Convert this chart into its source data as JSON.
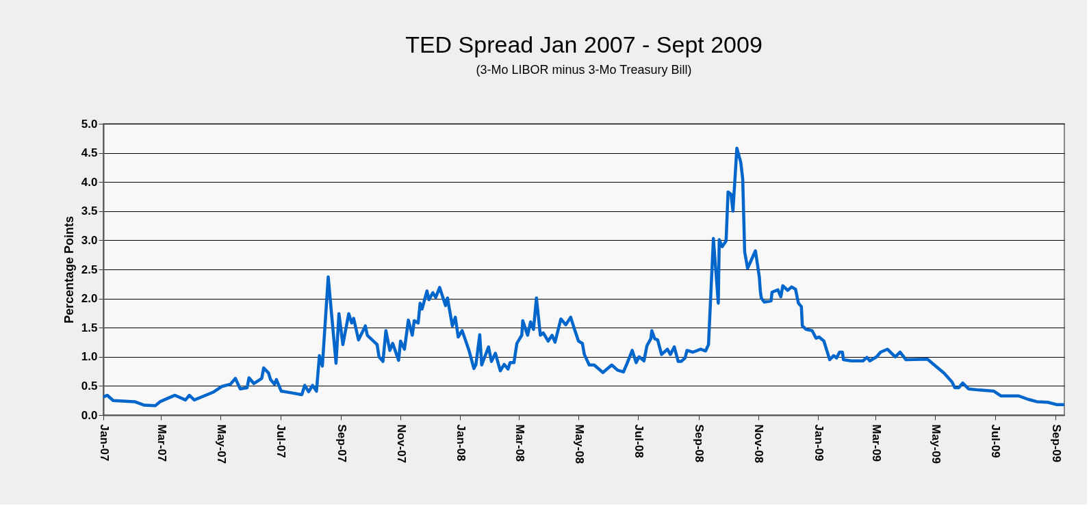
{
  "chart_data": {
    "type": "line",
    "title": "TED Spread Jan 2007 - Sept 2009",
    "subtitle": "(3-Mo LIBOR minus 3-Mo Treasury Bill)",
    "ylabel": "Percentage Points",
    "x": [
      "2007-01-01",
      "2007-01-05",
      "2007-01-11",
      "2007-02-02",
      "2007-02-12",
      "2007-02-23",
      "2007-02-28",
      "2007-03-15",
      "2007-03-26",
      "2007-03-30",
      "2007-04-04",
      "2007-04-23",
      "2007-05-02",
      "2007-05-11",
      "2007-05-16",
      "2007-05-21",
      "2007-05-28",
      "2007-05-30",
      "2007-06-04",
      "2007-06-12",
      "2007-06-14",
      "2007-06-19",
      "2007-06-21",
      "2007-06-25",
      "2007-06-27",
      "2007-07-02",
      "2007-07-13",
      "2007-07-23",
      "2007-07-26",
      "2007-07-30",
      "2007-08-03",
      "2007-08-07",
      "2007-08-10",
      "2007-08-13",
      "2007-08-19",
      "2007-08-27",
      "2007-08-30",
      "2007-09-03",
      "2007-09-09",
      "2007-09-12",
      "2007-09-14",
      "2007-09-19",
      "2007-09-26",
      "2007-09-28",
      "2007-10-08",
      "2007-10-10",
      "2007-10-14",
      "2007-10-17",
      "2007-10-21",
      "2007-10-24",
      "2007-10-30",
      "2007-11-01",
      "2007-11-05",
      "2007-11-09",
      "2007-11-13",
      "2007-11-15",
      "2007-11-19",
      "2007-11-21",
      "2007-11-23",
      "2007-11-28",
      "2007-11-30",
      "2007-12-04",
      "2007-12-07",
      "2007-12-11",
      "2007-12-17",
      "2007-12-19",
      "2007-12-24",
      "2007-12-27",
      "2007-12-30",
      "2008-01-03",
      "2008-01-10",
      "2008-01-15",
      "2008-01-17",
      "2008-01-21",
      "2008-01-23",
      "2008-01-30",
      "2008-02-02",
      "2008-02-06",
      "2008-02-11",
      "2008-02-15",
      "2008-02-19",
      "2008-02-21",
      "2008-02-25",
      "2008-02-28",
      "2008-03-04",
      "2008-03-05",
      "2008-03-10",
      "2008-03-13",
      "2008-03-16",
      "2008-03-19",
      "2008-03-23",
      "2008-03-26",
      "2008-03-31",
      "2008-04-04",
      "2008-04-07",
      "2008-04-13",
      "2008-04-18",
      "2008-04-23",
      "2008-04-27",
      "2008-05-01",
      "2008-05-05",
      "2008-05-07",
      "2008-05-12",
      "2008-05-17",
      "2008-05-26",
      "2008-06-04",
      "2008-06-10",
      "2008-06-16",
      "2008-06-20",
      "2008-06-25",
      "2008-06-29",
      "2008-07-02",
      "2008-07-07",
      "2008-07-10",
      "2008-07-14",
      "2008-07-15",
      "2008-07-18",
      "2008-07-21",
      "2008-07-25",
      "2008-07-31",
      "2008-08-03",
      "2008-08-07",
      "2008-08-11",
      "2008-08-14",
      "2008-08-18",
      "2008-08-20",
      "2008-08-26",
      "2008-09-03",
      "2008-09-08",
      "2008-09-11",
      "2008-09-16",
      "2008-09-21",
      "2008-09-22",
      "2008-09-25",
      "2008-09-29",
      "2008-10-01",
      "2008-10-04",
      "2008-10-06",
      "2008-10-10",
      "2008-10-14",
      "2008-10-16",
      "2008-10-18",
      "2008-10-21",
      "2008-10-25",
      "2008-10-29",
      "2008-11-02",
      "2008-11-03",
      "2008-11-04",
      "2008-11-07",
      "2008-11-14",
      "2008-11-15",
      "2008-11-21",
      "2008-11-24",
      "2008-11-26",
      "2008-12-01",
      "2008-12-05",
      "2008-12-09",
      "2008-12-12",
      "2008-12-15",
      "2008-12-16",
      "2008-12-20",
      "2008-12-26",
      "2008-12-30",
      "2009-01-02",
      "2009-01-07",
      "2009-01-13",
      "2009-01-17",
      "2009-01-20",
      "2009-01-23",
      "2009-01-26",
      "2009-01-27",
      "2009-02-04",
      "2009-02-16",
      "2009-02-20",
      "2009-02-23",
      "2009-03-02",
      "2009-03-06",
      "2009-03-13",
      "2009-03-21",
      "2009-03-26",
      "2009-04-01",
      "2009-04-23",
      "2009-04-30",
      "2009-05-10",
      "2009-05-18",
      "2009-05-21",
      "2009-05-25",
      "2009-05-29",
      "2009-06-04",
      "2009-06-15",
      "2009-06-30",
      "2009-07-07",
      "2009-07-25",
      "2009-08-04",
      "2009-08-13",
      "2009-08-24",
      "2009-09-02",
      "2009-09-10"
    ],
    "series": [
      {
        "color": "#0066cc",
        "values": [
          0.31,
          0.34,
          0.25,
          0.23,
          0.17,
          0.16,
          0.23,
          0.34,
          0.26,
          0.34,
          0.26,
          0.39,
          0.49,
          0.53,
          0.63,
          0.45,
          0.47,
          0.64,
          0.54,
          0.63,
          0.81,
          0.72,
          0.61,
          0.53,
          0.61,
          0.41,
          0.38,
          0.35,
          0.51,
          0.4,
          0.51,
          0.41,
          1.02,
          0.84,
          2.37,
          0.89,
          1.74,
          1.21,
          1.74,
          1.58,
          1.66,
          1.29,
          1.53,
          1.37,
          1.21,
          1.0,
          0.92,
          1.45,
          1.11,
          1.23,
          0.94,
          1.27,
          1.13,
          1.63,
          1.37,
          1.62,
          1.58,
          1.92,
          1.82,
          2.13,
          1.98,
          2.1,
          2.02,
          2.19,
          1.88,
          2.01,
          1.53,
          1.68,
          1.34,
          1.45,
          1.11,
          0.8,
          0.86,
          1.38,
          0.86,
          1.17,
          0.92,
          1.06,
          0.76,
          0.87,
          0.79,
          0.9,
          0.9,
          1.23,
          1.37,
          1.62,
          1.37,
          1.6,
          1.47,
          2.01,
          1.37,
          1.41,
          1.27,
          1.37,
          1.25,
          1.65,
          1.55,
          1.68,
          1.47,
          1.27,
          1.23,
          1.04,
          0.86,
          0.86,
          0.73,
          0.86,
          0.77,
          0.74,
          0.9,
          1.11,
          0.9,
          1.0,
          0.93,
          1.19,
          1.31,
          1.45,
          1.31,
          1.29,
          1.04,
          1.13,
          1.04,
          1.17,
          0.92,
          0.92,
          0.98,
          1.11,
          1.08,
          1.13,
          1.1,
          1.21,
          3.03,
          1.92,
          3.01,
          2.89,
          2.99,
          3.83,
          3.79,
          3.5,
          4.58,
          4.34,
          4.05,
          2.8,
          2.52,
          2.67,
          2.82,
          2.37,
          2.13,
          2.01,
          1.94,
          1.96,
          2.11,
          2.15,
          2.03,
          2.22,
          2.14,
          2.2,
          2.16,
          1.92,
          1.86,
          1.53,
          1.47,
          1.45,
          1.32,
          1.34,
          1.27,
          0.95,
          1.02,
          0.98,
          1.08,
          1.08,
          0.95,
          0.93,
          0.93,
          0.99,
          0.93,
          1.0,
          1.08,
          1.13,
          1.0,
          1.08,
          0.95,
          0.96,
          0.86,
          0.72,
          0.57,
          0.47,
          0.47,
          0.55,
          0.45,
          0.43,
          0.41,
          0.33,
          0.33,
          0.27,
          0.23,
          0.22,
          0.18,
          0.18
        ]
      }
    ],
    "xlim": [
      "2007-01-01",
      "2009-09-10"
    ],
    "xticks": [
      {
        "value": "2007-01-01",
        "label": "Jan-07"
      },
      {
        "value": "2007-03-01",
        "label": "Mar-07"
      },
      {
        "value": "2007-05-01",
        "label": "May-07"
      },
      {
        "value": "2007-07-01",
        "label": "Jul-07"
      },
      {
        "value": "2007-09-01",
        "label": "Sep-07"
      },
      {
        "value": "2007-11-01",
        "label": "Nov-07"
      },
      {
        "value": "2008-01-01",
        "label": "Jan-08"
      },
      {
        "value": "2008-03-01",
        "label": "Mar-08"
      },
      {
        "value": "2008-05-01",
        "label": "May-08"
      },
      {
        "value": "2008-07-01",
        "label": "Jul-08"
      },
      {
        "value": "2008-09-01",
        "label": "Sep-08"
      },
      {
        "value": "2008-11-01",
        "label": "Nov-08"
      },
      {
        "value": "2009-01-01",
        "label": "Jan-09"
      },
      {
        "value": "2009-03-01",
        "label": "Mar-09"
      },
      {
        "value": "2009-05-01",
        "label": "May-09"
      },
      {
        "value": "2009-07-01",
        "label": "Jul-09"
      },
      {
        "value": "2009-09-01",
        "label": "Sep-09"
      }
    ],
    "ylim": [
      0,
      5
    ],
    "yticks": [
      {
        "value": 0,
        "label": "0.0"
      },
      {
        "value": 0.5,
        "label": "0.5"
      },
      {
        "value": 1,
        "label": "1.0"
      },
      {
        "value": 1.5,
        "label": "1.5"
      },
      {
        "value": 2,
        "label": "2.0"
      },
      {
        "value": 2.5,
        "label": "2.5"
      },
      {
        "value": 3,
        "label": "3.0"
      },
      {
        "value": 3.5,
        "label": "3.5"
      },
      {
        "value": 4,
        "label": "4.0"
      },
      {
        "value": 4.5,
        "label": "4.5"
      },
      {
        "value": 5,
        "label": "5.0"
      }
    ],
    "grid": "y",
    "marker": "none",
    "line_style": "solid"
  }
}
